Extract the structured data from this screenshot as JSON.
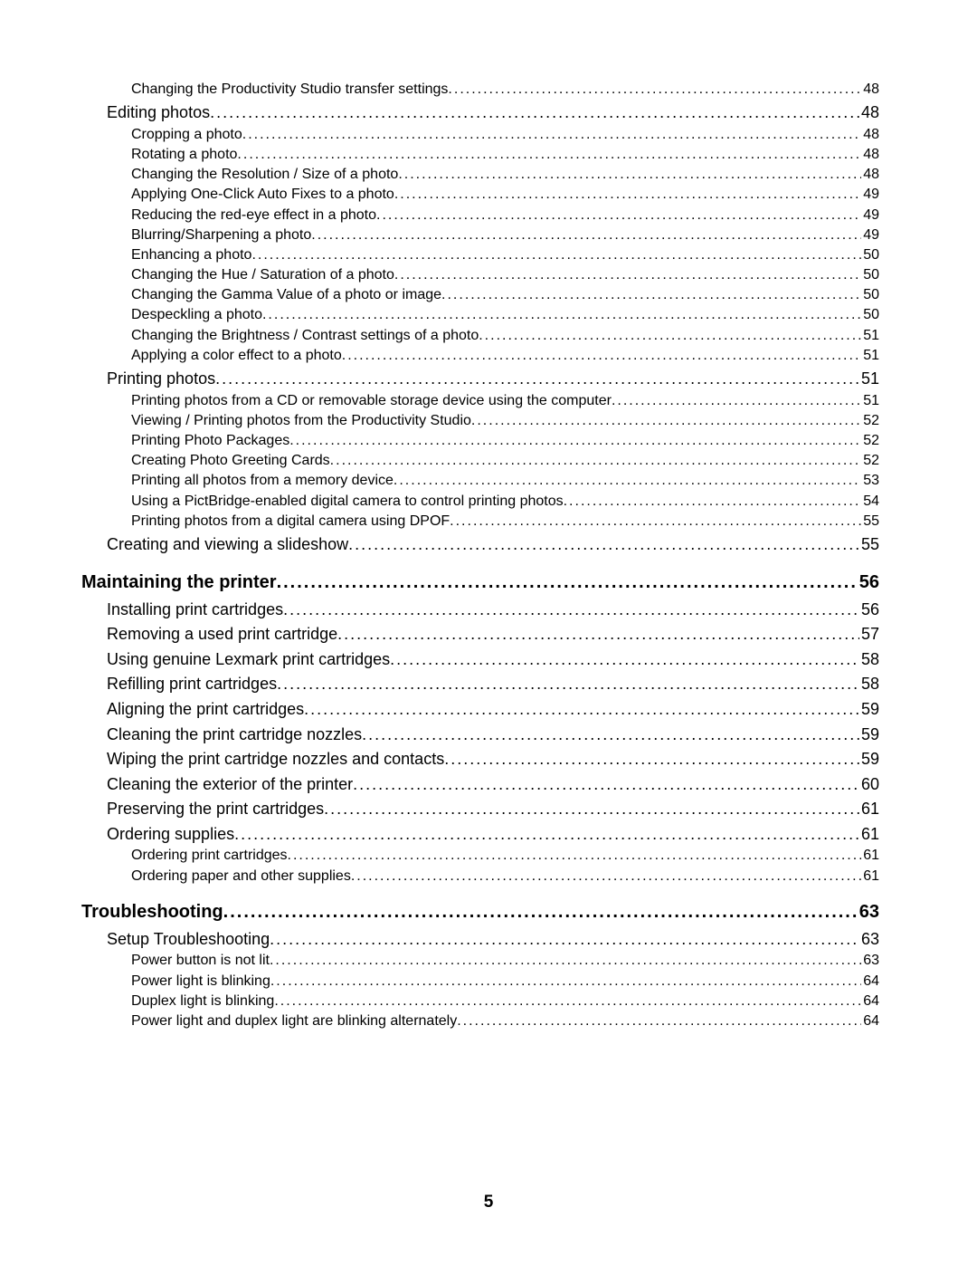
{
  "page_number": "5",
  "dot_char": ".",
  "toc": [
    {
      "level": 3,
      "title": "Changing the Productivity Studio transfer settings",
      "page": "48"
    },
    {
      "level": 2,
      "title": "Editing photos",
      "page": "48"
    },
    {
      "level": 3,
      "title": "Cropping a photo",
      "page": "48"
    },
    {
      "level": 3,
      "title": "Rotating a photo",
      "page": "48"
    },
    {
      "level": 3,
      "title": "Changing the Resolution / Size of a photo",
      "page": "48"
    },
    {
      "level": 3,
      "title": "Applying One-Click Auto Fixes to a photo",
      "page": "49"
    },
    {
      "level": 3,
      "title": "Reducing the red-eye effect in a photo",
      "page": "49"
    },
    {
      "level": 3,
      "title": "Blurring/Sharpening a photo",
      "page": "49"
    },
    {
      "level": 3,
      "title": "Enhancing a photo",
      "page": "50"
    },
    {
      "level": 3,
      "title": "Changing the Hue / Saturation of a photo",
      "page": "50"
    },
    {
      "level": 3,
      "title": "Changing the Gamma Value of a photo or image",
      "page": "50"
    },
    {
      "level": 3,
      "title": "Despeckling a photo",
      "page": "50"
    },
    {
      "level": 3,
      "title": "Changing the Brightness / Contrast settings of a photo",
      "page": "51"
    },
    {
      "level": 3,
      "title": "Applying a color effect to a photo",
      "page": "51"
    },
    {
      "level": 2,
      "title": "Printing photos",
      "page": "51"
    },
    {
      "level": 3,
      "title": "Printing photos from a CD or removable storage device using the computer",
      "page": "51"
    },
    {
      "level": 3,
      "title": "Viewing / Printing photos from the Productivity Studio",
      "page": "52"
    },
    {
      "level": 3,
      "title": "Printing Photo Packages",
      "page": "52"
    },
    {
      "level": 3,
      "title": "Creating Photo Greeting Cards",
      "page": "52"
    },
    {
      "level": 3,
      "title": "Printing all photos from a memory device",
      "page": "53"
    },
    {
      "level": 3,
      "title": "Using a PictBridge-enabled digital camera to control printing photos",
      "page": "54"
    },
    {
      "level": 3,
      "title": "Printing photos from a digital camera using DPOF",
      "page": "55"
    },
    {
      "level": 2,
      "title": "Creating and viewing a slideshow",
      "page": "55"
    },
    {
      "level": 1,
      "title": "Maintaining the printer",
      "page": "56"
    },
    {
      "level": 2,
      "title": "Installing print cartridges",
      "page": "56"
    },
    {
      "level": 2,
      "title": "Removing a used print cartridge",
      "page": "57"
    },
    {
      "level": 2,
      "title": "Using genuine Lexmark print cartridges",
      "page": "58"
    },
    {
      "level": 2,
      "title": "Refilling print cartridges",
      "page": "58"
    },
    {
      "level": 2,
      "title": "Aligning the print cartridges",
      "page": "59"
    },
    {
      "level": 2,
      "title": "Cleaning the print cartridge nozzles",
      "page": "59"
    },
    {
      "level": 2,
      "title": "Wiping the print cartridge nozzles and contacts",
      "page": "59"
    },
    {
      "level": 2,
      "title": "Cleaning the exterior of the printer",
      "page": "60"
    },
    {
      "level": 2,
      "title": "Preserving the print cartridges",
      "page": "61"
    },
    {
      "level": 2,
      "title": "Ordering supplies",
      "page": "61"
    },
    {
      "level": 3,
      "title": "Ordering print cartridges",
      "page": "61"
    },
    {
      "level": 3,
      "title": "Ordering paper and other supplies",
      "page": "61"
    },
    {
      "level": 1,
      "title": "Troubleshooting",
      "page": "63"
    },
    {
      "level": 2,
      "title": "Setup Troubleshooting",
      "page": "63"
    },
    {
      "level": 3,
      "title": "Power button is not lit",
      "page": "63"
    },
    {
      "level": 3,
      "title": "Power light is blinking",
      "page": "64"
    },
    {
      "level": 3,
      "title": "Duplex light is blinking",
      "page": "64"
    },
    {
      "level": 3,
      "title": "Power light and duplex light are blinking alternately",
      "page": "64"
    }
  ]
}
